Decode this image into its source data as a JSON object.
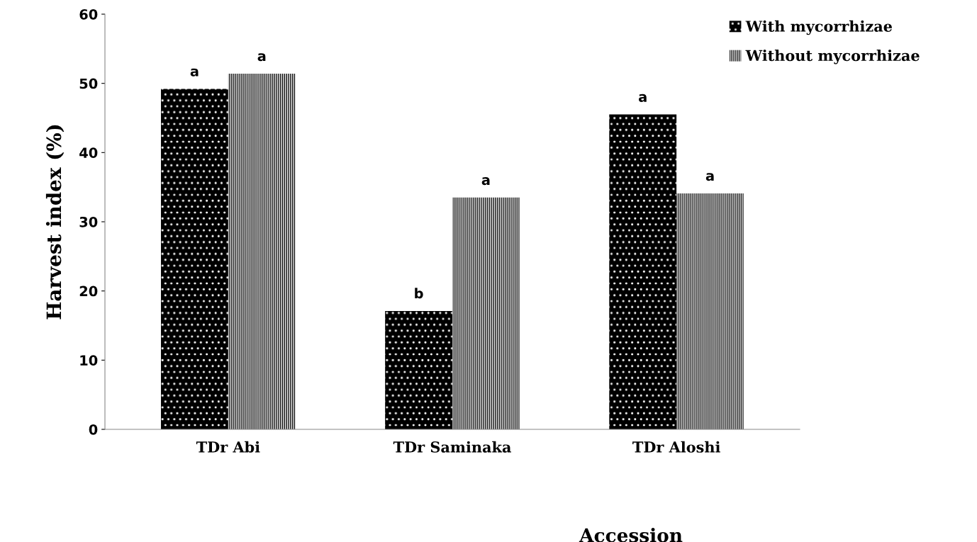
{
  "chart_data": {
    "type": "bar",
    "xlabel": "Accession",
    "ylabel": "Harvest index (%)",
    "categories": [
      "TDr Abi",
      "TDr Saminaka",
      "TDr Aloshi"
    ],
    "series": [
      {
        "name": "With mycorrhizae",
        "color": "#000000",
        "values": [
          49.2,
          17.1,
          45.5
        ],
        "value_labels": [
          "a",
          "b",
          "a"
        ]
      },
      {
        "name": "Without mycorrhizae",
        "color": "#ffffff",
        "values": [
          51.4,
          33.5,
          34.1
        ],
        "value_labels": [
          "a",
          "a",
          "a"
        ]
      }
    ],
    "ylim": [
      0,
      60
    ],
    "yticks": [
      0,
      10,
      20,
      30,
      40,
      50,
      60
    ],
    "grid": false,
    "legend": "top right"
  }
}
